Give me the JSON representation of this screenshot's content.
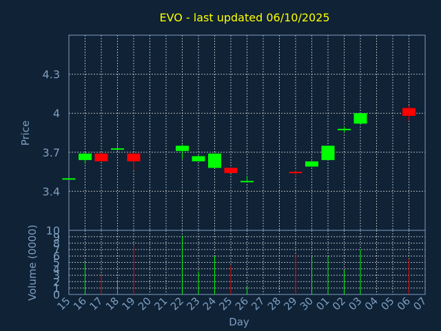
{
  "chart_data": {
    "type": "candlestick",
    "title": "EVO - last updated 06/10/2025",
    "xlabel": "Day",
    "price_panel": {
      "ylabel": "Price",
      "ylim": [
        3.1,
        4.6
      ],
      "yticks": [
        "3.4",
        "3.7",
        "4",
        "4.3"
      ],
      "ytick_values": [
        3.4,
        3.7,
        4.0,
        4.3
      ]
    },
    "volume_panel": {
      "ylabel": "Volume (0000)",
      "ylim": [
        0,
        10
      ],
      "yticks": [
        "0",
        "1",
        "2",
        "3",
        "4",
        "5",
        "6",
        "7",
        "8",
        "9",
        "10"
      ]
    },
    "x_ticks": [
      "15",
      "16",
      "17",
      "18",
      "19",
      "20",
      "21",
      "22",
      "23",
      "24",
      "25",
      "26",
      "27",
      "28",
      "29",
      "30",
      "01",
      "02",
      "03",
      "04",
      "05",
      "06",
      "07"
    ],
    "candles": [
      {
        "x": "15",
        "open": 3.5,
        "close": 3.5,
        "high": 3.5,
        "low": 3.5,
        "volume": 0
      },
      {
        "x": "16",
        "open": 3.64,
        "close": 3.69,
        "high": 3.7,
        "low": 3.61,
        "volume": 5.0
      },
      {
        "x": "17",
        "open": 3.69,
        "close": 3.63,
        "high": 3.7,
        "low": 3.63,
        "volume": 3.0
      },
      {
        "x": "18",
        "open": 3.72,
        "close": 3.73,
        "high": 3.76,
        "low": 3.71,
        "volume": 2.3
      },
      {
        "x": "19",
        "open": 3.69,
        "close": 3.63,
        "high": 3.7,
        "low": 3.56,
        "volume": 7.7
      },
      {
        "x": "22",
        "open": 3.71,
        "close": 3.75,
        "high": 3.76,
        "low": 3.65,
        "volume": 9.2
      },
      {
        "x": "23",
        "open": 3.63,
        "close": 3.67,
        "high": 3.68,
        "low": 3.63,
        "volume": 3.6
      },
      {
        "x": "24",
        "open": 3.58,
        "close": 3.69,
        "high": 3.69,
        "low": 3.58,
        "volume": 6.0
      },
      {
        "x": "25",
        "open": 3.58,
        "close": 3.54,
        "high": 3.58,
        "low": 3.54,
        "volume": 4.5
      },
      {
        "x": "26",
        "open": 3.47,
        "close": 3.48,
        "high": 3.52,
        "low": 3.47,
        "volume": 1.3
      },
      {
        "x": "29",
        "open": 3.55,
        "close": 3.54,
        "high": 3.56,
        "low": 3.51,
        "volume": 6.3
      },
      {
        "x": "30",
        "open": 3.59,
        "close": 3.63,
        "high": 3.63,
        "low": 3.59,
        "volume": 6.0
      },
      {
        "x": "01",
        "open": 3.64,
        "close": 3.75,
        "high": 3.75,
        "low": 3.64,
        "volume": 5.9
      },
      {
        "x": "02",
        "open": 3.87,
        "close": 3.88,
        "high": 3.9,
        "low": 3.85,
        "volume": 3.8
      },
      {
        "x": "03",
        "open": 3.92,
        "close": 4.0,
        "high": 4.0,
        "low": 3.92,
        "volume": 7.0
      },
      {
        "x": "06",
        "open": 4.04,
        "close": 3.98,
        "high": 4.06,
        "low": 3.94,
        "volume": 5.6
      }
    ],
    "colors": {
      "background": "#0f2236",
      "up": "#00ff00",
      "down": "#ff0000",
      "axis": "#7f9fc0",
      "title": "#ffff00",
      "grid": "#c8c8c8"
    },
    "grid": true
  }
}
